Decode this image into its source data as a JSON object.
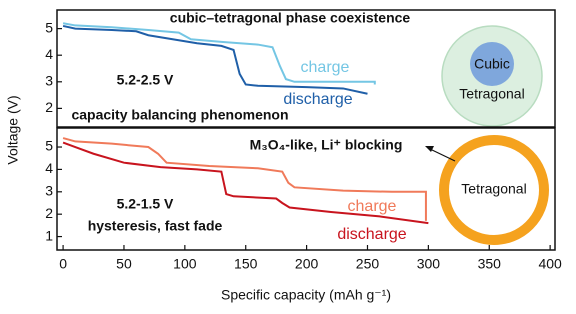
{
  "chart_data": [
    {
      "type": "line",
      "ylabel": "Voltage (V)",
      "xlim": [
        -5,
        404
      ],
      "ylim": [
        1.3,
        5.7
      ],
      "yticks": [
        2,
        3,
        4,
        5
      ],
      "annotations": [
        "cubic–tetragonal phase coexistence",
        "5.2-2.5 V",
        "capacity balancing phenomenon",
        "Cubic",
        "Tetragonal"
      ],
      "series": [
        {
          "name": "charge",
          "color": "#74c6e4",
          "x": [
            0,
            10,
            40,
            70,
            95,
            105,
            130,
            160,
            172,
            178,
            183,
            190,
            220,
            256,
            256
          ],
          "values": [
            5.2,
            5.12,
            5.05,
            4.95,
            4.85,
            4.6,
            4.5,
            4.4,
            4.3,
            3.6,
            3.1,
            3.0,
            3.0,
            3.0,
            2.9
          ]
        },
        {
          "name": "discharge",
          "color": "#1f5fa8",
          "x": [
            0,
            10,
            40,
            60,
            70,
            90,
            110,
            130,
            140,
            145,
            150,
            160,
            200,
            230,
            250
          ],
          "values": [
            5.1,
            5.0,
            4.95,
            4.9,
            4.75,
            4.6,
            4.45,
            4.35,
            4.2,
            3.3,
            2.9,
            2.85,
            2.8,
            2.75,
            2.55
          ]
        }
      ]
    },
    {
      "type": "line",
      "xlabel": "Specific capacity (mAh g⁻¹)",
      "xlim": [
        -5,
        404
      ],
      "ylim": [
        0.4,
        5.85
      ],
      "yticks": [
        1,
        2,
        3,
        4,
        5
      ],
      "xticks": [
        0,
        50,
        100,
        150,
        200,
        250,
        300,
        350,
        400
      ],
      "annotations": [
        "M₃O₄-like, Li⁺ blocking",
        "5.2-1.5 V",
        "hysteresis, fast fade",
        "Tetragonal"
      ],
      "series": [
        {
          "name": "charge",
          "color": "#f07a5a",
          "x": [
            0,
            10,
            40,
            70,
            78,
            85,
            120,
            160,
            180,
            185,
            190,
            230,
            270,
            298,
            298
          ],
          "values": [
            5.4,
            5.25,
            5.15,
            5.0,
            4.7,
            4.3,
            4.15,
            4.05,
            3.9,
            3.4,
            3.2,
            3.05,
            3.0,
            3.0,
            1.7
          ]
        },
        {
          "name": "discharge",
          "color": "#c8141e",
          "x": [
            0,
            10,
            25,
            50,
            80,
            110,
            130,
            134,
            140,
            175,
            180,
            186,
            220,
            260,
            300
          ],
          "values": [
            5.2,
            5.0,
            4.7,
            4.3,
            4.1,
            4.0,
            3.9,
            2.9,
            2.8,
            2.7,
            2.5,
            2.3,
            2.1,
            1.9,
            1.6
          ]
        }
      ]
    }
  ]
}
